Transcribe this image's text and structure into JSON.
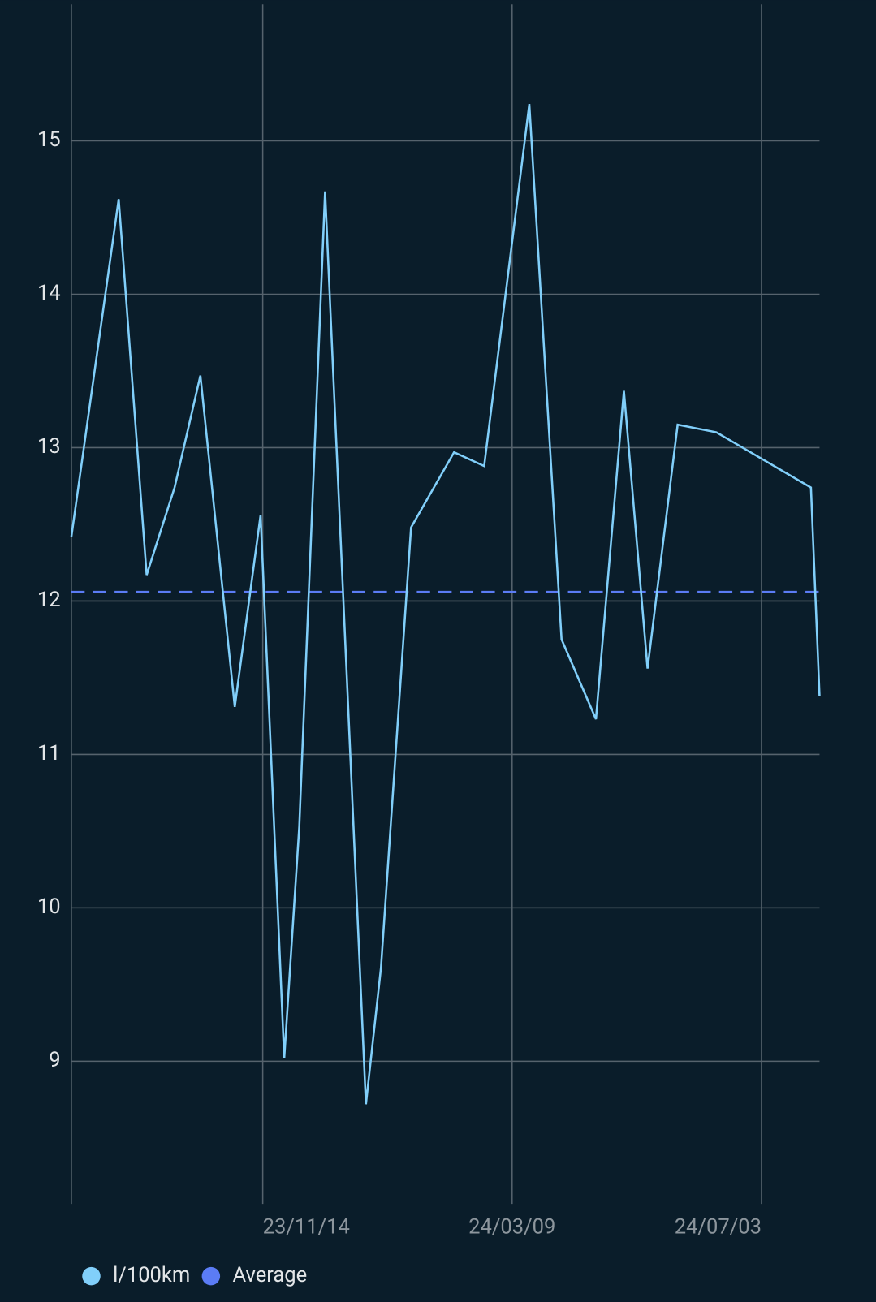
{
  "chart_data": {
    "type": "line",
    "x": [
      "23/08/17",
      "23/09/08",
      "23/09/21",
      "23/10/04",
      "23/10/16",
      "23/11/01",
      "23/11/13",
      "23/11/24",
      "23/12/01",
      "23/12/13",
      "24/01/01",
      "24/01/08",
      "24/01/22",
      "24/02/11",
      "24/02/25",
      "24/03/17",
      "24/04/01",
      "24/04/17",
      "24/04/30",
      "24/05/11",
      "24/05/25",
      "24/06/12",
      "24/07/26",
      "24/07/30"
    ],
    "series": [
      {
        "name": "l/100km",
        "color": "#81cffa",
        "values": [
          12.42,
          14.62,
          12.17,
          12.74,
          13.47,
          11.31,
          12.56,
          9.02,
          10.53,
          14.67,
          8.72,
          9.61,
          12.48,
          12.97,
          12.88,
          15.24,
          11.75,
          11.23,
          13.37,
          11.56,
          13.15,
          13.1,
          12.74,
          11.38
        ]
      }
    ],
    "reference_lines": [
      {
        "name": "Average",
        "value": 12.06,
        "color": "#5b7cf5",
        "dashed": true
      }
    ],
    "xlim": [
      "23/08/17",
      "24/07/30"
    ],
    "xticks": [
      "23/11/14",
      "24/03/09",
      "24/07/03"
    ],
    "ylim": [
      8.07,
      15.89
    ],
    "yticks": [
      9,
      10,
      11,
      12,
      13,
      14,
      15
    ],
    "grid": true,
    "legend": "bottom-left"
  }
}
